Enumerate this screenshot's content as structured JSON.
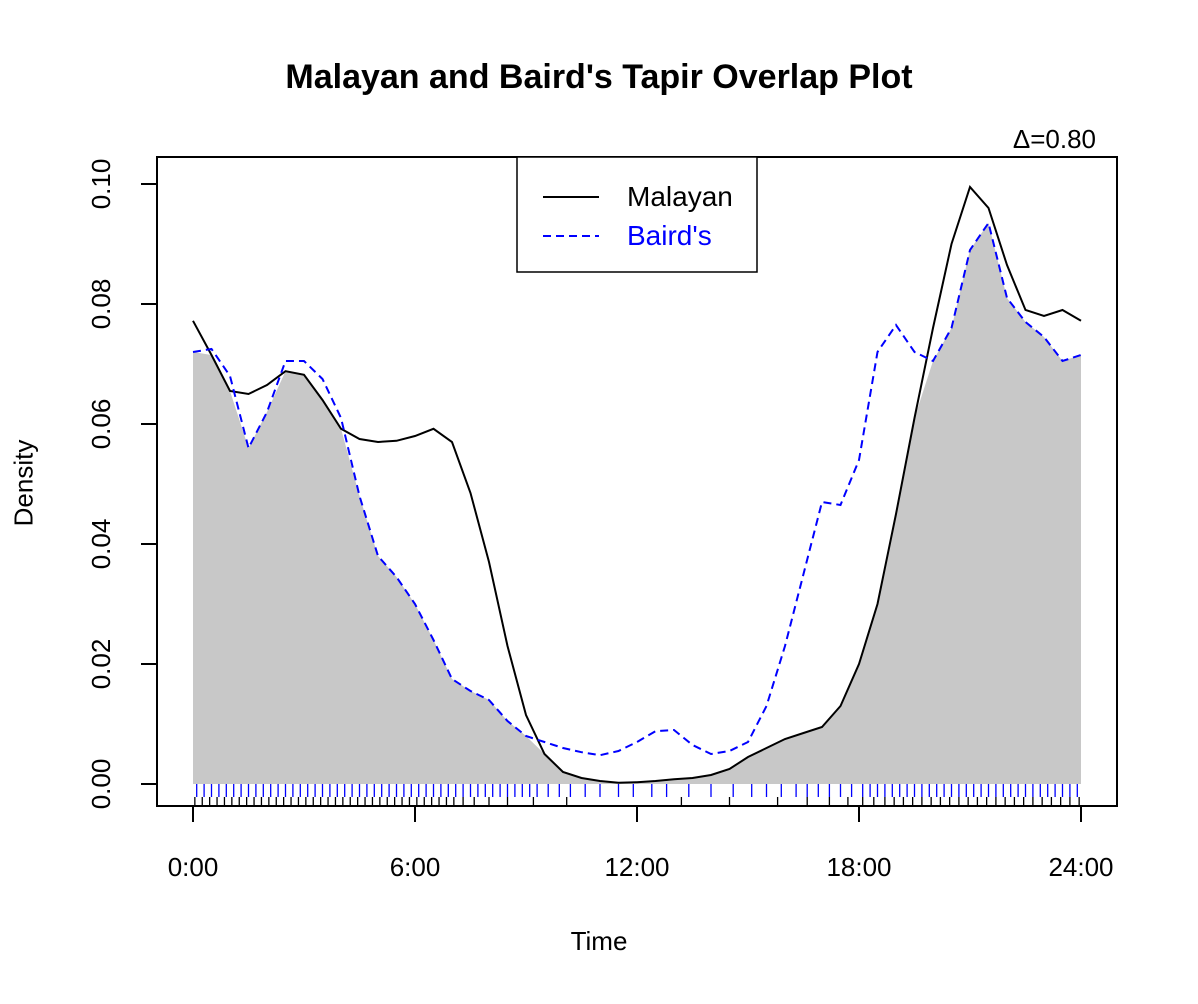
{
  "chart_data": {
    "type": "line",
    "title": "Malayan and Baird's Tapir Overlap Plot",
    "xlabel": "Time",
    "ylabel": "Density",
    "annotation": "Δ=0.80",
    "xlim": [
      0,
      24
    ],
    "ylim": [
      0,
      0.1
    ],
    "x_ticks": [
      {
        "value": 0,
        "label": "0:00"
      },
      {
        "value": 6,
        "label": "6:00"
      },
      {
        "value": 12,
        "label": "12:00"
      },
      {
        "value": 18,
        "label": "18:00"
      },
      {
        "value": 24,
        "label": "24:00"
      }
    ],
    "y_ticks": [
      {
        "value": 0,
        "label": "0.00"
      },
      {
        "value": 0.02,
        "label": "0.02"
      },
      {
        "value": 0.04,
        "label": "0.04"
      },
      {
        "value": 0.06,
        "label": "0.06"
      },
      {
        "value": 0.08,
        "label": "0.08"
      },
      {
        "value": 0.1,
        "label": "0.10"
      }
    ],
    "legend_position": "top-center",
    "overlap_fill_color": "#c8c8c8",
    "series": [
      {
        "name": "Malayan",
        "color": "#000000",
        "dash": "solid",
        "x": [
          0,
          0.5,
          1,
          1.5,
          2,
          2.5,
          3,
          3.5,
          4,
          4.5,
          5,
          5.5,
          6,
          6.5,
          7,
          7.5,
          8,
          8.5,
          9,
          9.5,
          10,
          10.5,
          11,
          11.5,
          12,
          12.5,
          13,
          13.5,
          14,
          14.5,
          15,
          15.5,
          16,
          16.5,
          17,
          17.5,
          18,
          18.5,
          19,
          19.5,
          20,
          20.5,
          21,
          21.5,
          22,
          22.5,
          23,
          23.5,
          24
        ],
        "y": [
          0.0772,
          0.0715,
          0.0655,
          0.065,
          0.0665,
          0.0688,
          0.0682,
          0.064,
          0.0592,
          0.0575,
          0.057,
          0.0572,
          0.058,
          0.0592,
          0.057,
          0.0485,
          0.037,
          0.023,
          0.0115,
          0.005,
          0.002,
          0.001,
          0.0005,
          0.0002,
          0.0003,
          0.0005,
          0.0008,
          0.001,
          0.0015,
          0.0025,
          0.0045,
          0.006,
          0.0075,
          0.0085,
          0.0095,
          0.013,
          0.02,
          0.03,
          0.045,
          0.061,
          0.076,
          0.09,
          0.0995,
          0.096,
          0.0865,
          0.079,
          0.078,
          0.079,
          0.0772
        ]
      },
      {
        "name": "Baird's",
        "color": "#0000ff",
        "dash": "dashed",
        "x": [
          0,
          0.5,
          1,
          1.5,
          2,
          2.5,
          3,
          3.5,
          4,
          4.5,
          5,
          5.5,
          6,
          6.5,
          7,
          7.5,
          8,
          8.5,
          9,
          9.5,
          10,
          10.5,
          11,
          11.5,
          12,
          12.5,
          13,
          13.5,
          14,
          14.5,
          15,
          15.5,
          16,
          16.5,
          17,
          17.5,
          18,
          18.5,
          19,
          19.5,
          20,
          20.5,
          21,
          21.5,
          22,
          22.5,
          23,
          23.5,
          24
        ],
        "y": [
          0.072,
          0.0725,
          0.068,
          0.056,
          0.062,
          0.0705,
          0.0705,
          0.0675,
          0.061,
          0.048,
          0.038,
          0.0345,
          0.03,
          0.024,
          0.0175,
          0.0155,
          0.014,
          0.0105,
          0.008,
          0.007,
          0.006,
          0.0053,
          0.0048,
          0.0055,
          0.007,
          0.0088,
          0.009,
          0.0065,
          0.005,
          0.0055,
          0.007,
          0.013,
          0.023,
          0.035,
          0.047,
          0.0465,
          0.054,
          0.072,
          0.0765,
          0.072,
          0.0705,
          0.076,
          0.089,
          0.0935,
          0.081,
          0.077,
          0.0745,
          0.0705,
          0.0715
        ]
      }
    ],
    "rug": [
      {
        "name": "Baird's",
        "color": "#0000ff",
        "times": [
          0.1,
          0.3,
          0.5,
          0.7,
          0.9,
          1.1,
          1.3,
          1.5,
          1.7,
          1.9,
          2.1,
          2.3,
          2.5,
          2.7,
          2.9,
          3.1,
          3.3,
          3.5,
          3.7,
          3.9,
          4.1,
          4.3,
          4.5,
          4.7,
          4.9,
          5.1,
          5.3,
          5.5,
          5.7,
          5.9,
          6.1,
          6.3,
          6.5,
          6.7,
          6.9,
          7.1,
          7.3,
          7.5,
          7.7,
          7.9,
          8.1,
          8.3,
          8.5,
          8.7,
          8.9,
          9.1,
          9.3,
          9.6,
          9.9,
          10.2,
          10.6,
          11.0,
          11.5,
          11.9,
          12.4,
          12.8,
          13.4,
          14.0,
          14.6,
          15.1,
          15.5,
          15.9,
          16.3,
          16.6,
          16.9,
          17.2,
          17.5,
          17.8,
          18.1,
          18.3,
          18.5,
          18.7,
          18.9,
          19.1,
          19.3,
          19.5,
          19.7,
          19.9,
          20.1,
          20.3,
          20.5,
          20.7,
          20.9,
          21.1,
          21.3,
          21.5,
          21.7,
          21.9,
          22.1,
          22.3,
          22.5,
          22.7,
          22.9,
          23.1,
          23.3,
          23.5,
          23.7,
          23.9
        ]
      },
      {
        "name": "Malayan",
        "color": "#000000",
        "times": [
          0.05,
          0.25,
          0.45,
          0.65,
          0.85,
          1.05,
          1.25,
          1.45,
          1.65,
          1.85,
          2.05,
          2.25,
          2.45,
          2.65,
          2.85,
          3.05,
          3.25,
          3.45,
          3.65,
          3.85,
          4.05,
          4.25,
          4.45,
          4.65,
          4.85,
          5.05,
          5.25,
          5.45,
          5.65,
          5.85,
          6.05,
          6.25,
          6.45,
          6.65,
          6.85,
          7.05,
          7.3,
          7.6,
          8.0,
          8.5,
          9.2,
          10.1,
          13.2,
          14.5,
          15.8,
          16.6,
          17.2,
          17.7,
          18.1,
          18.4,
          18.7,
          18.95,
          19.2,
          19.45,
          19.7,
          19.95,
          20.2,
          20.45,
          20.7,
          20.95,
          21.2,
          21.45,
          21.7,
          21.95,
          22.2,
          22.45,
          22.7,
          22.95,
          23.2,
          23.45,
          23.7,
          23.95
        ]
      }
    ]
  }
}
